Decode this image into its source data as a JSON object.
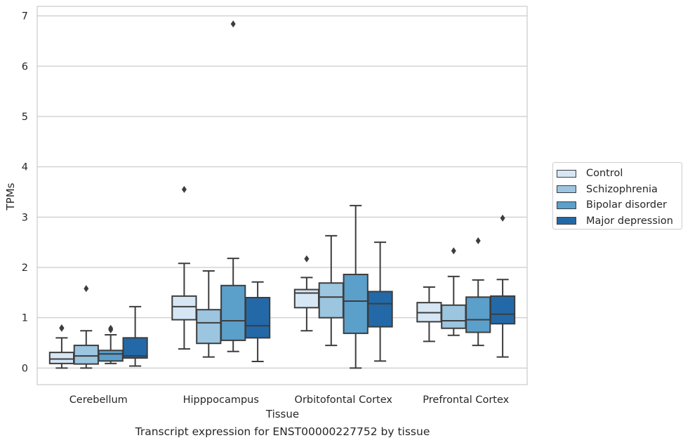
{
  "chart_data": {
    "type": "box",
    "xlabel": "Tissue",
    "ylabel": "TPMs",
    "caption": "Transcript expression for ENST00000227752 by tissue",
    "ylim": [
      -0.33,
      7.19
    ],
    "yticks": [
      0,
      1,
      2,
      3,
      4,
      5,
      6,
      7
    ],
    "grid": "horizontal",
    "legend_placement": "right",
    "categories": [
      "Cerebellum",
      "Hipppocampus",
      "Orbitofontal Cortex",
      "Prefrontal Cortex"
    ],
    "series": [
      {
        "name": "Control",
        "color": "#d6e6f4",
        "boxes": [
          {
            "whisker_low": 0.0,
            "q1": 0.09,
            "median": 0.18,
            "q3": 0.31,
            "whisker_high": 0.6,
            "outliers": [
              0.8,
              0.79
            ]
          },
          {
            "whisker_low": 0.38,
            "q1": 0.96,
            "median": 1.22,
            "q3": 1.43,
            "whisker_high": 2.08,
            "outliers": [
              3.55
            ]
          },
          {
            "whisker_low": 0.74,
            "q1": 1.2,
            "median": 1.49,
            "q3": 1.56,
            "whisker_high": 1.8,
            "outliers": [
              2.17
            ]
          },
          {
            "whisker_low": 0.53,
            "q1": 0.92,
            "median": 1.1,
            "q3": 1.3,
            "whisker_high": 1.61,
            "outliers": []
          }
        ]
      },
      {
        "name": "Schizophrenia",
        "color": "#9cc5df",
        "boxes": [
          {
            "whisker_low": 0.0,
            "q1": 0.08,
            "median": 0.24,
            "q3": 0.45,
            "whisker_high": 0.74,
            "outliers": [
              1.58
            ]
          },
          {
            "whisker_low": 0.22,
            "q1": 0.49,
            "median": 0.9,
            "q3": 1.16,
            "whisker_high": 1.93,
            "outliers": []
          },
          {
            "whisker_low": 0.45,
            "q1": 1.0,
            "median": 1.41,
            "q3": 1.69,
            "whisker_high": 2.63,
            "outliers": []
          },
          {
            "whisker_low": 0.65,
            "q1": 0.79,
            "median": 0.94,
            "q3": 1.25,
            "whisker_high": 1.82,
            "outliers": [
              2.33
            ]
          }
        ]
      },
      {
        "name": "Bipolar disorder",
        "color": "#5b9fcb",
        "boxes": [
          {
            "whisker_low": 0.09,
            "q1": 0.14,
            "median": 0.28,
            "q3": 0.35,
            "whisker_high": 0.66,
            "outliers": [
              0.79,
              0.76
            ]
          },
          {
            "whisker_low": 0.33,
            "q1": 0.55,
            "median": 0.94,
            "q3": 1.64,
            "whisker_high": 2.18,
            "outliers": [
              6.84
            ]
          },
          {
            "whisker_low": 0.0,
            "q1": 0.69,
            "median": 1.33,
            "q3": 1.86,
            "whisker_high": 3.23,
            "outliers": []
          },
          {
            "whisker_low": 0.45,
            "q1": 0.71,
            "median": 0.96,
            "q3": 1.41,
            "whisker_high": 1.75,
            "outliers": [
              2.53
            ]
          }
        ]
      },
      {
        "name": "Major depression",
        "color": "#2369a8",
        "boxes": [
          {
            "whisker_low": 0.04,
            "q1": 0.2,
            "median": 0.24,
            "q3": 0.6,
            "whisker_high": 1.22,
            "outliers": []
          },
          {
            "whisker_low": 0.13,
            "q1": 0.6,
            "median": 0.84,
            "q3": 1.4,
            "whisker_high": 1.71,
            "outliers": []
          },
          {
            "whisker_low": 0.14,
            "q1": 0.82,
            "median": 1.28,
            "q3": 1.52,
            "whisker_high": 2.5,
            "outliers": []
          },
          {
            "whisker_low": 0.22,
            "q1": 0.88,
            "median": 1.07,
            "q3": 1.43,
            "whisker_high": 1.76,
            "outliers": [
              2.98
            ]
          }
        ]
      }
    ]
  }
}
